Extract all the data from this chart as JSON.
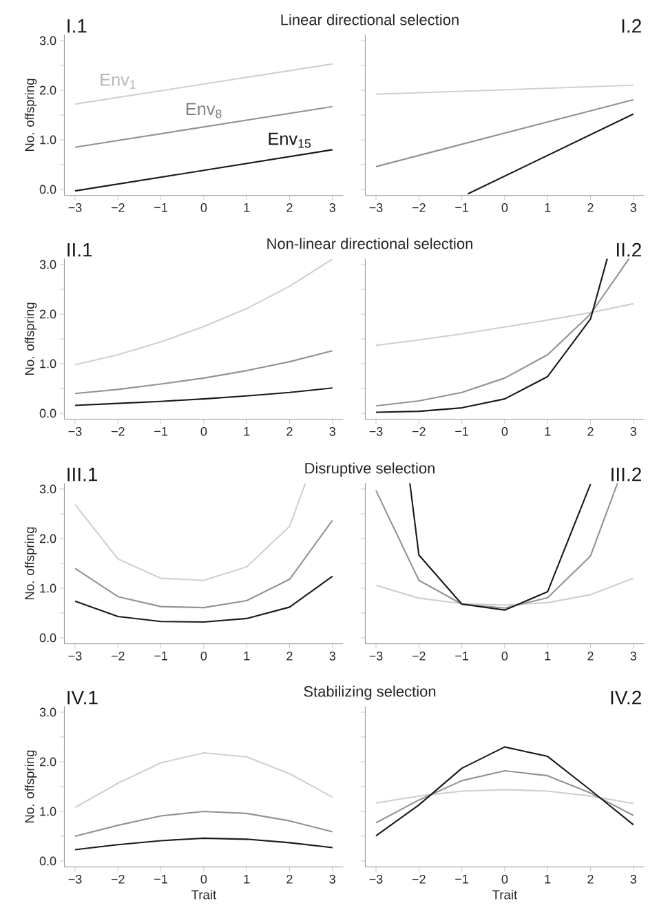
{
  "chart_data": [
    {
      "type": "line",
      "title": "Linear directional selection",
      "annotations": [
        "I.1"
      ],
      "ylabel": "No. offspring",
      "marker": "none",
      "line_style": "solid",
      "legend": false,
      "grid": false,
      "x": [
        -3,
        3
      ],
      "xlim": [
        -3.25,
        3.25
      ],
      "ylim": [
        -0.12,
        3.12
      ],
      "xticks": [
        {
          "value": -3,
          "label": "−3"
        },
        {
          "value": -2,
          "label": "−2"
        },
        {
          "value": -1,
          "label": "−1"
        },
        0,
        1,
        2,
        3
      ],
      "yticks": [
        {
          "value": 0,
          "label": "0.0"
        },
        {
          "value": 0.5,
          "label": null
        },
        {
          "value": 1,
          "label": "1.0"
        },
        {
          "value": 1.5,
          "label": null
        },
        {
          "value": 2,
          "label": "2.0"
        },
        {
          "value": 2.5,
          "label": null
        },
        {
          "value": 3,
          "label": "3.0"
        }
      ],
      "series": [
        {
          "name": "Env$_{1}$",
          "color": "#d0d0d0",
          "values": [
            1.72,
            2.53
          ]
        },
        {
          "name": "Env$_{8}$",
          "color": "#939393",
          "values": [
            0.85,
            1.67
          ]
        },
        {
          "name": "Env$_{15}$",
          "color": "#1a1a1a",
          "values": [
            -0.03,
            0.8
          ]
        }
      ]
    },
    {
      "type": "line",
      "annotations": [
        "I.2"
      ],
      "marker": "none",
      "line_style": "solid",
      "legend": false,
      "grid": false,
      "tick_labels": "x",
      "x": [
        -3,
        3
      ],
      "xlim": [
        -3.25,
        3.25
      ],
      "ylim": [
        -0.12,
        3.12
      ],
      "xticks": [
        {
          "value": -3,
          "label": "−3"
        },
        {
          "value": -2,
          "label": "−2"
        },
        {
          "value": -1,
          "label": "−1"
        },
        0,
        1,
        2,
        3
      ],
      "yticks": [
        0,
        0.5,
        1,
        1.5,
        2,
        2.5,
        3
      ],
      "series": [
        {
          "color": "#d0d0d0",
          "values": [
            1.92,
            2.1
          ]
        },
        {
          "color": "#939393",
          "values": [
            0.46,
            1.81
          ]
        },
        {
          "color": "#1a1a1a",
          "x": [
            -0.86,
            3
          ],
          "values": [
            -0.09,
            1.52
          ]
        }
      ]
    },
    {
      "type": "line",
      "title": "Non-linear directional selection",
      "annotations": [
        "II.1"
      ],
      "ylabel": "No. offspring",
      "marker": "none",
      "line_style": "solid",
      "legend": false,
      "grid": false,
      "x": [
        -3,
        -2,
        -1,
        0,
        1,
        2,
        3
      ],
      "xlim": [
        -3.25,
        3.25
      ],
      "ylim": [
        -0.12,
        3.12
      ],
      "xticks": [
        {
          "value": -3,
          "label": "−3"
        },
        {
          "value": -2,
          "label": "−2"
        },
        {
          "value": -1,
          "label": "−1"
        },
        0,
        1,
        2,
        3
      ],
      "yticks": [
        {
          "value": 0,
          "label": "0.0"
        },
        {
          "value": 0.5,
          "label": null
        },
        {
          "value": 1,
          "label": "1.0"
        },
        {
          "value": 1.5,
          "label": null
        },
        {
          "value": 2,
          "label": "2.0"
        },
        {
          "value": 2.5,
          "label": null
        },
        {
          "value": 3,
          "label": "3.0"
        }
      ],
      "series": [
        {
          "color": "#d0d0d0",
          "values": [
            0.98,
            1.18,
            1.44,
            1.75,
            2.11,
            2.56,
            3.11
          ]
        },
        {
          "color": "#939393",
          "values": [
            0.4,
            0.48,
            0.59,
            0.71,
            0.86,
            1.04,
            1.26
          ]
        },
        {
          "color": "#1a1a1a",
          "values": [
            0.16,
            0.2,
            0.24,
            0.29,
            0.35,
            0.42,
            0.51
          ]
        }
      ]
    },
    {
      "type": "line",
      "annotations": [
        "II.2"
      ],
      "marker": "none",
      "line_style": "solid",
      "legend": false,
      "grid": false,
      "tick_labels": "x",
      "x": [
        -3,
        -2,
        -1,
        0,
        1,
        2,
        3
      ],
      "xlim": [
        -3.25,
        3.25
      ],
      "ylim": [
        -0.12,
        3.12
      ],
      "xticks": [
        {
          "value": -3,
          "label": "−3"
        },
        {
          "value": -2,
          "label": "−2"
        },
        {
          "value": -1,
          "label": "−1"
        },
        0,
        1,
        2,
        3
      ],
      "yticks": [
        0,
        0.5,
        1,
        1.5,
        2,
        2.5,
        3
      ],
      "series": [
        {
          "color": "#d0d0d0",
          "values": [
            1.37,
            1.48,
            1.6,
            1.74,
            1.88,
            2.03,
            2.21
          ]
        },
        {
          "color": "#939393",
          "x": [
            -3,
            -2,
            -1,
            0,
            1,
            2,
            2.9
          ],
          "values": [
            0.15,
            0.25,
            0.42,
            0.71,
            1.18,
            2.0,
            3.12
          ]
        },
        {
          "color": "#1a1a1a",
          "x": [
            -3,
            -2,
            -1,
            0,
            1,
            2,
            2.39
          ],
          "values": [
            0.02,
            0.04,
            0.11,
            0.29,
            0.74,
            1.9,
            3.12
          ]
        }
      ]
    },
    {
      "type": "line",
      "title": "Disruptive selection",
      "annotations": [
        "III.1"
      ],
      "ylabel": "No. offspring",
      "marker": "none",
      "line_style": "solid",
      "legend": false,
      "grid": false,
      "x": [
        -3,
        -2,
        -1,
        0,
        1,
        2,
        3
      ],
      "xlim": [
        -3.25,
        3.25
      ],
      "ylim": [
        -0.12,
        3.12
      ],
      "xticks": [
        {
          "value": -3,
          "label": "−3"
        },
        {
          "value": -2,
          "label": "−2"
        },
        {
          "value": -1,
          "label": "−1"
        },
        0,
        1,
        2,
        3
      ],
      "yticks": [
        {
          "value": 0,
          "label": "0.0"
        },
        {
          "value": 0.5,
          "label": null
        },
        {
          "value": 1,
          "label": "1.0"
        },
        {
          "value": 1.5,
          "label": null
        },
        {
          "value": 2,
          "label": "2.0"
        },
        {
          "value": 2.5,
          "label": null
        },
        {
          "value": 3,
          "label": "3.0"
        }
      ],
      "series": [
        {
          "color": "#d0d0d0",
          "x": [
            -3,
            -2,
            -1,
            0,
            1,
            2,
            2.37
          ],
          "values": [
            2.69,
            1.59,
            1.2,
            1.16,
            1.43,
            2.25,
            3.12
          ]
        },
        {
          "color": "#939393",
          "values": [
            1.4,
            0.83,
            0.63,
            0.61,
            0.75,
            1.18,
            2.37
          ]
        },
        {
          "color": "#1a1a1a",
          "values": [
            0.74,
            0.43,
            0.33,
            0.32,
            0.39,
            0.62,
            1.24
          ]
        }
      ]
    },
    {
      "type": "line",
      "annotations": [
        "III.2"
      ],
      "marker": "none",
      "line_style": "solid",
      "legend": false,
      "grid": false,
      "tick_labels": "x",
      "x": [
        -3,
        -2,
        -1,
        0,
        1,
        2,
        3
      ],
      "xlim": [
        -3.25,
        3.25
      ],
      "ylim": [
        -0.12,
        3.12
      ],
      "xticks": [
        {
          "value": -3,
          "label": "−3"
        },
        {
          "value": -2,
          "label": "−2"
        },
        {
          "value": -1,
          "label": "−1"
        },
        0,
        1,
        2,
        3
      ],
      "yticks": [
        0,
        0.5,
        1,
        1.5,
        2,
        2.5,
        3
      ],
      "series": [
        {
          "color": "#d0d0d0",
          "values": [
            1.06,
            0.8,
            0.69,
            0.66,
            0.71,
            0.87,
            1.2
          ]
        },
        {
          "color": "#939393",
          "x": [
            -3,
            -2,
            -1,
            0,
            1,
            2,
            2.63
          ],
          "values": [
            2.97,
            1.16,
            0.68,
            0.6,
            0.81,
            1.65,
            3.12
          ]
        },
        {
          "color": "#1a1a1a",
          "x": [
            -2.21,
            -2,
            -1,
            0,
            1,
            2
          ],
          "values": [
            3.12,
            1.67,
            0.68,
            0.56,
            0.93,
            3.1
          ]
        }
      ]
    },
    {
      "type": "line",
      "title": "Stabilizing selection",
      "annotations": [
        "IV.1"
      ],
      "ylabel": "No. offspring",
      "xlabel": "Trait",
      "marker": "none",
      "line_style": "solid",
      "legend": false,
      "grid": false,
      "x": [
        -3,
        -2,
        -1,
        0,
        1,
        2,
        3
      ],
      "xlim": [
        -3.25,
        3.25
      ],
      "ylim": [
        -0.12,
        3.12
      ],
      "xticks": [
        {
          "value": -3,
          "label": "−3"
        },
        {
          "value": -2,
          "label": "−2"
        },
        {
          "value": -1,
          "label": "−1"
        },
        0,
        1,
        2,
        3
      ],
      "yticks": [
        {
          "value": 0,
          "label": "0.0"
        },
        {
          "value": 0.5,
          "label": null
        },
        {
          "value": 1,
          "label": "1.0"
        },
        {
          "value": 1.5,
          "label": null
        },
        {
          "value": 2,
          "label": "2.0"
        },
        {
          "value": 2.5,
          "label": null
        },
        {
          "value": 3,
          "label": "3.0"
        }
      ],
      "series": [
        {
          "color": "#d0d0d0",
          "values": [
            1.08,
            1.57,
            1.98,
            2.18,
            2.1,
            1.76,
            1.29
          ]
        },
        {
          "color": "#939393",
          "values": [
            0.5,
            0.72,
            0.91,
            1.0,
            0.96,
            0.81,
            0.59
          ]
        },
        {
          "color": "#1a1a1a",
          "values": [
            0.23,
            0.33,
            0.41,
            0.46,
            0.44,
            0.37,
            0.27
          ]
        }
      ]
    },
    {
      "type": "line",
      "annotations": [
        "IV.2"
      ],
      "xlabel": "Trait",
      "marker": "none",
      "line_style": "solid",
      "legend": false,
      "grid": false,
      "tick_labels": "x",
      "x": [
        -3,
        -2,
        -1,
        0,
        1,
        2,
        3
      ],
      "xlim": [
        -3.25,
        3.25
      ],
      "ylim": [
        -0.12,
        3.12
      ],
      "xticks": [
        {
          "value": -3,
          "label": "−3"
        },
        {
          "value": -2,
          "label": "−2"
        },
        {
          "value": -1,
          "label": "−1"
        },
        0,
        1,
        2,
        3
      ],
      "yticks": [
        0,
        0.5,
        1,
        1.5,
        2,
        2.5,
        3
      ],
      "series": [
        {
          "color": "#d0d0d0",
          "values": [
            1.17,
            1.31,
            1.41,
            1.44,
            1.41,
            1.31,
            1.16
          ]
        },
        {
          "color": "#939393",
          "values": [
            0.77,
            1.23,
            1.62,
            1.82,
            1.72,
            1.37,
            0.92
          ]
        },
        {
          "color": "#1a1a1a",
          "values": [
            0.51,
            1.13,
            1.87,
            2.3,
            2.11,
            1.43,
            0.73
          ]
        }
      ]
    }
  ]
}
